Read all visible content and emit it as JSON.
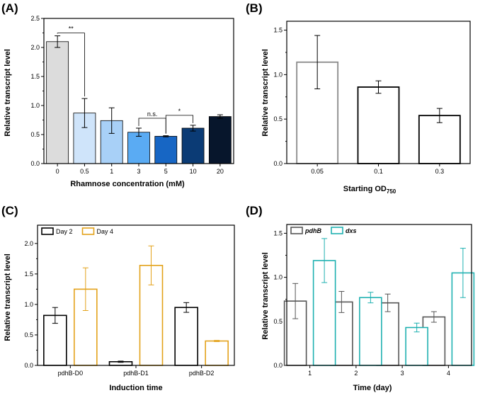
{
  "chart_data": [
    {
      "panel": "(A)",
      "type": "bar",
      "xlabel": "Rhamnose concentration (mM)",
      "ylabel": "Relative transcript level",
      "ylim": [
        0,
        2.5
      ],
      "yticks": [
        "0.0",
        "0.5",
        "1.0",
        "1.5",
        "2.0",
        "2.5"
      ],
      "categories": [
        "0",
        "0.5",
        "1",
        "3",
        "5",
        "10",
        "20"
      ],
      "values": [
        2.1,
        0.87,
        0.74,
        0.54,
        0.47,
        0.61,
        0.81
      ],
      "errors": [
        0.1,
        0.25,
        0.22,
        0.07,
        0.01,
        0.05,
        0.03
      ],
      "fill_colors": [
        "#dcdcdc",
        "#cfe4fa",
        "#a8d0f7",
        "#5aabf3",
        "#1766c4",
        "#0b3b75",
        "#07162c"
      ],
      "significance": [
        {
          "from": "0",
          "to": "0.5",
          "label": "**"
        },
        {
          "from": "3",
          "to": "5",
          "label": "n.s."
        },
        {
          "from": "5",
          "to": "10",
          "label": "*"
        }
      ]
    },
    {
      "panel": "(B)",
      "type": "bar",
      "xlabel": "Starting OD",
      "xlabel_sub": "750",
      "ylabel": "Relative transcript level",
      "ylim": [
        0,
        1.6
      ],
      "yticks": [
        "0.0",
        "0.5",
        "1.0",
        "1.5"
      ],
      "categories": [
        "0.05",
        "0.1",
        "0.3"
      ],
      "values": [
        1.14,
        0.86,
        0.54
      ],
      "errors": [
        0.3,
        0.07,
        0.08
      ],
      "edge_colors": [
        "#8a8a8a",
        "#000000",
        "#000000"
      ]
    },
    {
      "panel": "(C)",
      "type": "bar",
      "xlabel": "Induction time",
      "ylabel": "Relative transcript level",
      "ylim": [
        0,
        2.3
      ],
      "yticks": [
        "0.0",
        "0.5",
        "1.0",
        "1.5",
        "2.0"
      ],
      "categories": [
        "pdhB-D0",
        "pdhB-D1",
        "pdhB-D2"
      ],
      "series": [
        {
          "name": "Day 2",
          "color": "#000000",
          "values": [
            0.82,
            0.06,
            0.95
          ],
          "errors": [
            0.13,
            0.01,
            0.08
          ]
        },
        {
          "name": "Day 4",
          "color": "#e3a21a",
          "values": [
            1.25,
            1.64,
            0.4
          ],
          "errors": [
            0.35,
            0.32,
            0.01
          ]
        }
      ]
    },
    {
      "panel": "(D)",
      "type": "bar",
      "xlabel": "Time (day)",
      "ylabel": "Relative transcript level",
      "ylim": [
        0,
        1.6
      ],
      "yticks": [
        "0.0",
        "0.5",
        "1.0",
        "1.5"
      ],
      "categories": [
        "1",
        "2",
        "3",
        "4"
      ],
      "series": [
        {
          "name": "pdhB",
          "color": "#555555",
          "values": [
            0.73,
            0.72,
            0.71,
            0.55
          ],
          "errors": [
            0.2,
            0.12,
            0.1,
            0.06
          ]
        },
        {
          "name": "dxs",
          "color": "#1fb1b1",
          "values": [
            1.19,
            0.77,
            0.43,
            1.05
          ],
          "errors": [
            0.25,
            0.06,
            0.05,
            0.28
          ]
        }
      ]
    }
  ]
}
